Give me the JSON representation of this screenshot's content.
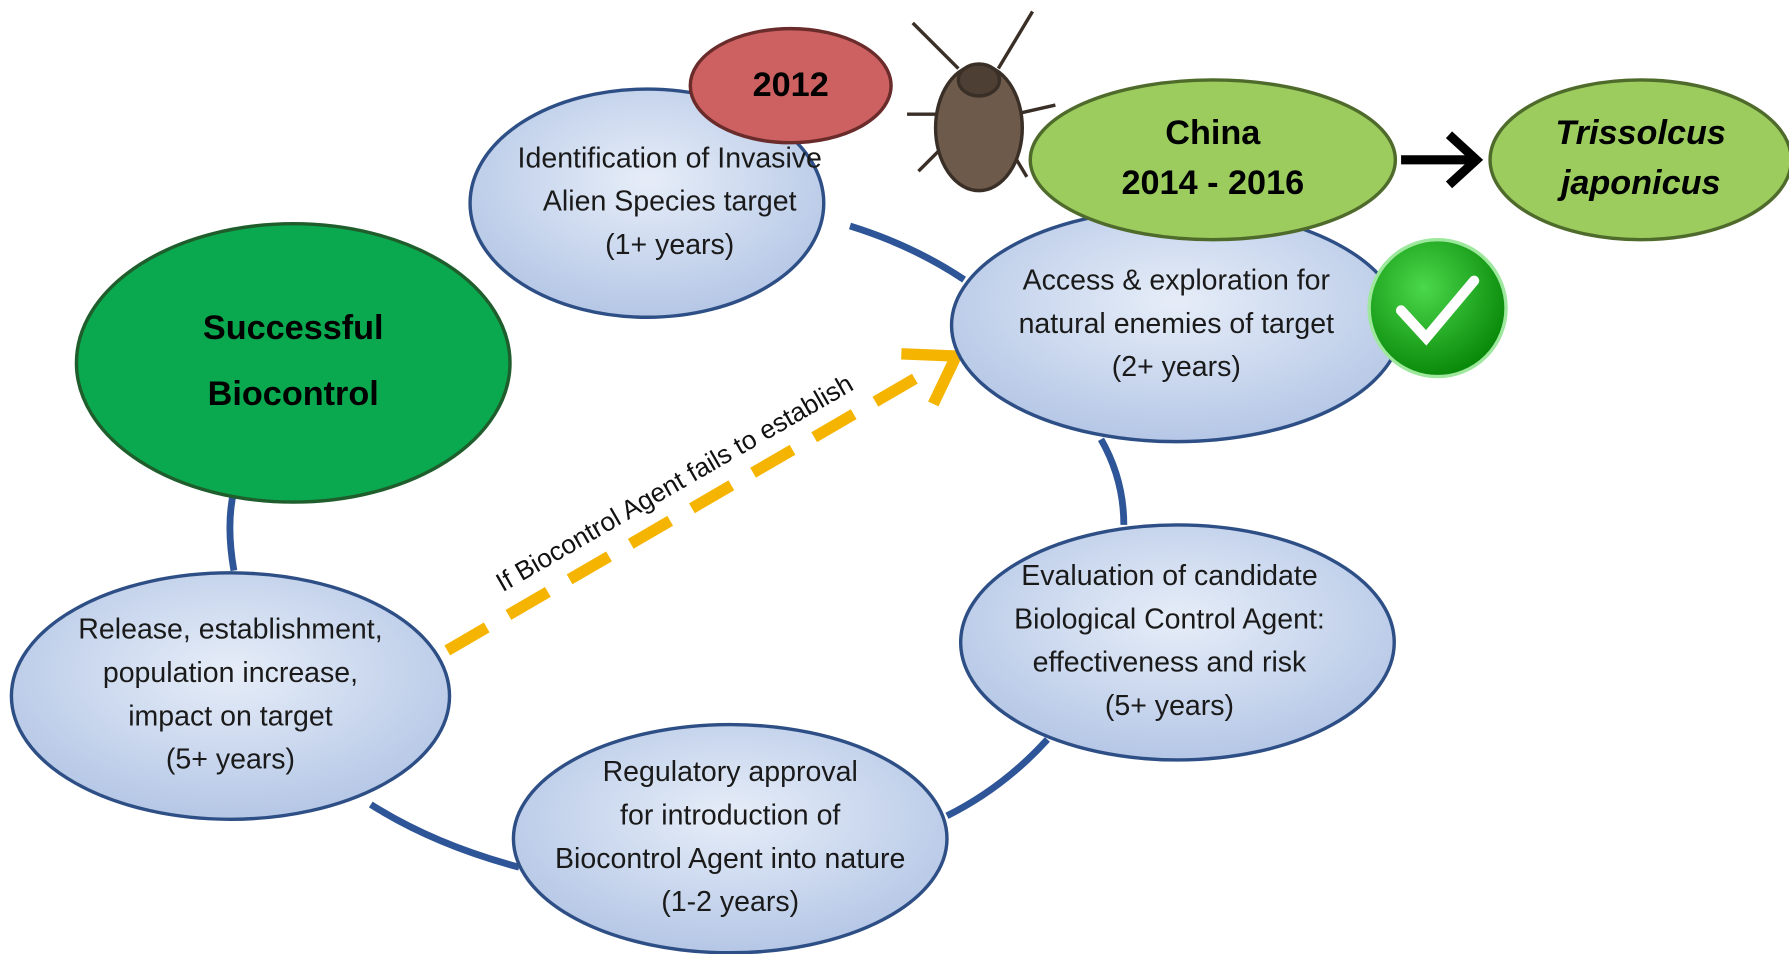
{
  "nodes": {
    "success": {
      "lines": [
        "Successful",
        "Biocontrol"
      ]
    },
    "identification": {
      "lines": [
        "Identification of Invasive",
        "Alien Species target",
        "(1+ years)"
      ]
    },
    "access": {
      "lines": [
        "Access & exploration for",
        "natural enemies of target",
        "(2+ years)"
      ]
    },
    "evaluation": {
      "lines": [
        "Evaluation of candidate",
        "Biological Control Agent:",
        "effectiveness and risk",
        "(5+ years)"
      ]
    },
    "regulatory": {
      "lines": [
        "Regulatory approval",
        "for introduction of",
        "Biocontrol Agent into nature",
        "(1-2 years)"
      ]
    },
    "release": {
      "lines": [
        "Release, establishment,",
        "population increase,",
        "impact on target",
        "(5+ years)"
      ]
    }
  },
  "badges": {
    "year": {
      "lines": [
        "2012"
      ]
    },
    "china": {
      "lines": [
        "China",
        "2014 - 2016"
      ]
    },
    "agent": {
      "lines": [
        "Trissolcus",
        "japonicus"
      ]
    }
  },
  "arrow_label": "If Biocontrol Agent fails to establish"
}
